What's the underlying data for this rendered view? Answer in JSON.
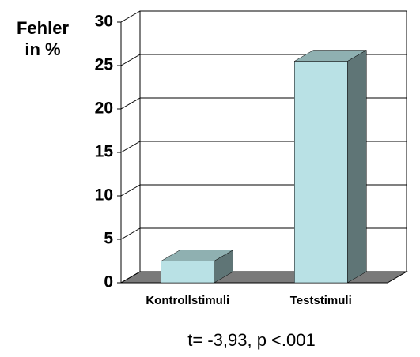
{
  "chart_data": {
    "type": "bar3d",
    "ylabel": "Fehler in %",
    "categories": [
      "Kontrollstimuli",
      "Teststimuli"
    ],
    "values": [
      2.5,
      25.5
    ],
    "color": "#b9e1e5",
    "ylim": [
      0,
      30
    ],
    "yticks": [
      0,
      5,
      10,
      15,
      20,
      25,
      30
    ],
    "grid": true,
    "annotation": "t= -3,93, p <.001"
  }
}
